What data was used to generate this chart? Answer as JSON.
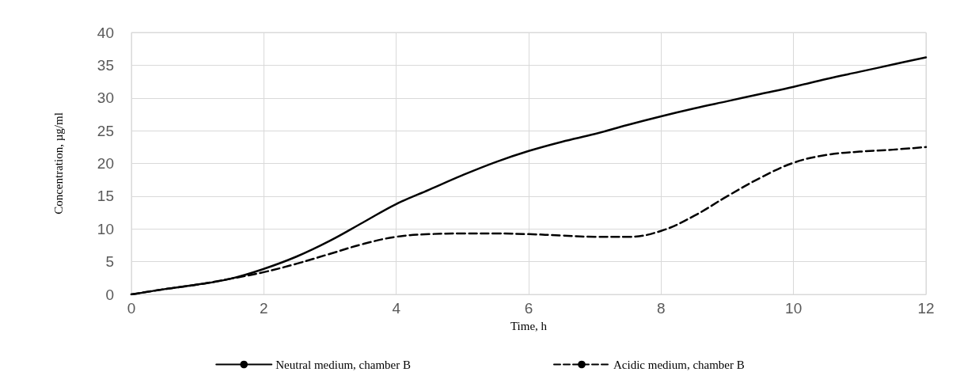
{
  "chart_data": {
    "type": "line",
    "xlabel": "Time, h",
    "ylabel": "Concentration, µg/ml",
    "x": [
      0,
      0.5,
      1,
      1.5,
      2,
      2.5,
      3,
      3.5,
      4,
      4.5,
      5,
      5.5,
      6,
      6.5,
      7,
      7.5,
      8,
      8.5,
      9,
      9.5,
      10,
      10.5,
      11,
      11.5,
      12
    ],
    "series": [
      {
        "name": "Neutral medium, chamber B",
        "color": "#000000",
        "line_style": "solid",
        "values": [
          0,
          0.8,
          1.5,
          2.4,
          3.9,
          5.8,
          8.2,
          11,
          13.8,
          16,
          18.2,
          20.2,
          21.9,
          23.3,
          24.5,
          25.9,
          27.2,
          28.4,
          29.5,
          30.6,
          31.7,
          32.9,
          34,
          35.1,
          36.2
        ]
      },
      {
        "name": "Acidic medium, chamber B",
        "color": "#000000",
        "line_style": "dashed",
        "values": [
          0,
          0.8,
          1.5,
          2.4,
          3.4,
          4.7,
          6.2,
          7.7,
          8.8,
          9.2,
          9.3,
          9.3,
          9.2,
          9.0,
          8.8,
          8.8,
          9.7,
          12,
          15,
          17.8,
          20.1,
          21.3,
          21.8,
          22.1,
          22.5
        ]
      }
    ],
    "xlim": [
      0,
      12
    ],
    "xticks": [
      0,
      2,
      4,
      6,
      8,
      10,
      12
    ],
    "ylim": [
      0,
      40
    ],
    "yticks": [
      0,
      5,
      10,
      15,
      20,
      25,
      30,
      35,
      40
    ],
    "grid": true,
    "legend": "bottom",
    "marker": "none"
  }
}
